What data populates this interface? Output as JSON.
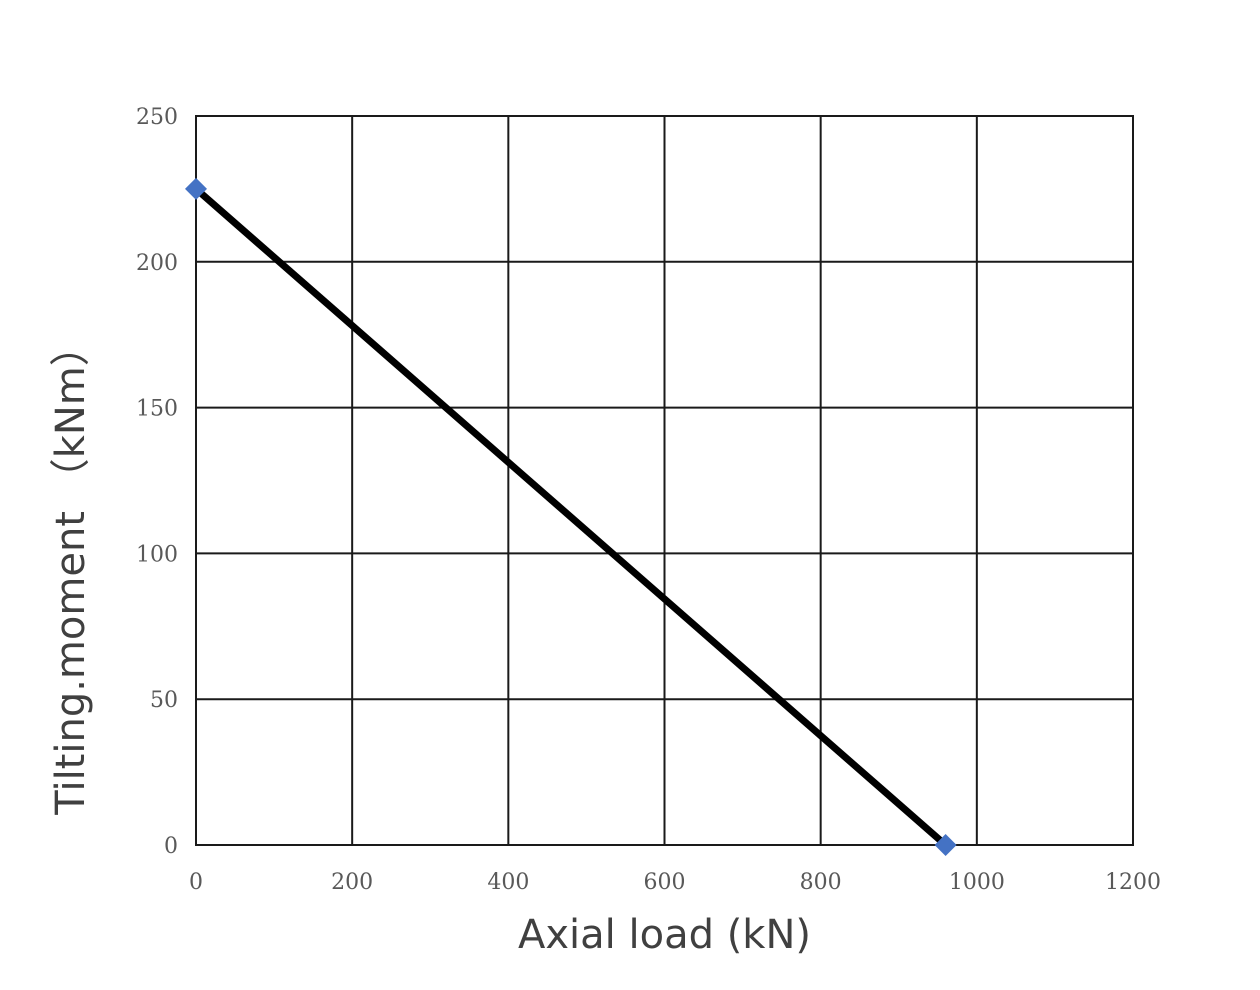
{
  "chart_data": {
    "type": "line",
    "xlabel": "Axial load (kN)",
    "ylabel": "Tilting.moment （kNm）",
    "xlim": [
      0,
      1200
    ],
    "ylim": [
      0,
      250
    ],
    "x_ticks": [
      "0",
      "200",
      "400",
      "600",
      "800",
      "1000",
      "1200"
    ],
    "y_ticks": [
      "0",
      "50",
      "100",
      "150",
      "200",
      "250"
    ],
    "grid": true,
    "series": [
      {
        "x": [
          0,
          960
        ],
        "y": [
          225,
          0
        ],
        "line_color": "#000000",
        "marker": "diamond",
        "marker_color": "#4472c4"
      }
    ]
  }
}
